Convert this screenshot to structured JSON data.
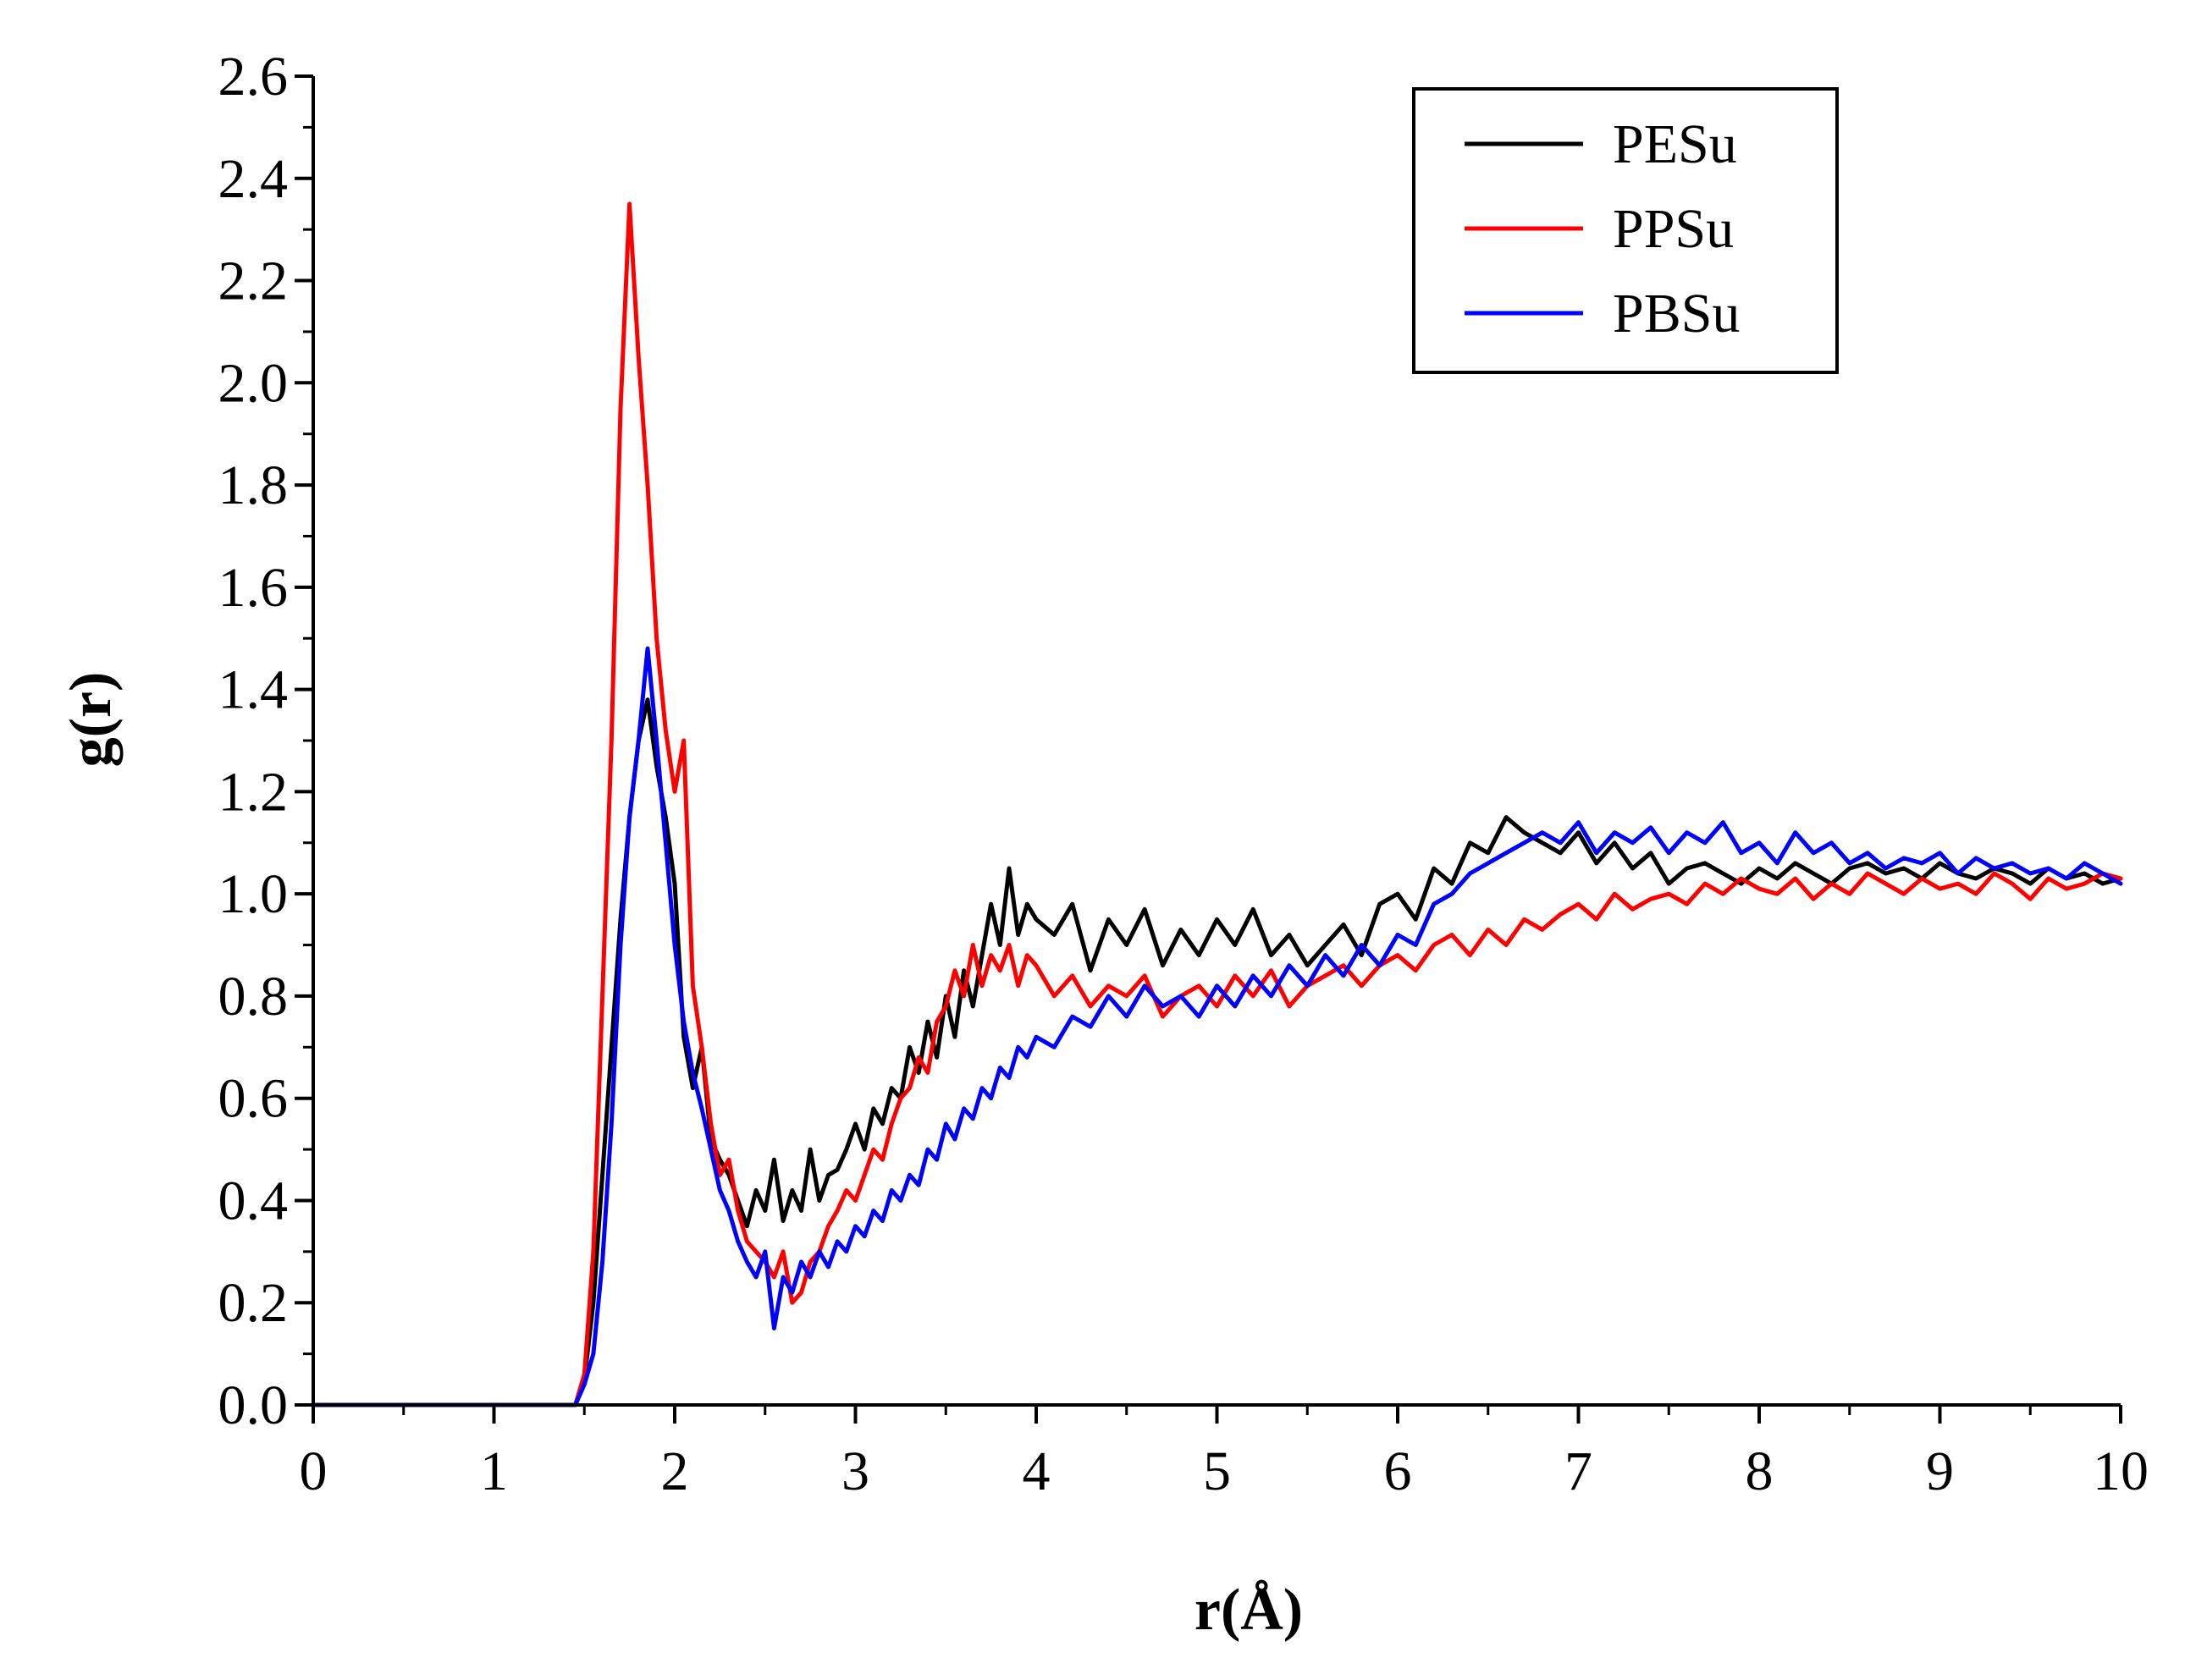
{
  "chart_data": {
    "type": "line",
    "title": "",
    "xlabel": "r(Å)",
    "ylabel": "g(r)",
    "xlim": [
      0,
      10
    ],
    "ylim": [
      0,
      2.6
    ],
    "xticks": [
      0,
      1,
      2,
      3,
      4,
      5,
      6,
      7,
      8,
      9,
      10
    ],
    "yticks": [
      0.0,
      0.2,
      0.4,
      0.6,
      0.8,
      1.0,
      1.2,
      1.4,
      1.6,
      1.8,
      2.0,
      2.2,
      2.4,
      2.6
    ],
    "xtick_labels": [
      "0",
      "1",
      "2",
      "3",
      "4",
      "5",
      "6",
      "7",
      "8",
      "9",
      "10"
    ],
    "ytick_labels": [
      "0.0",
      "0.2",
      "0.4",
      "0.6",
      "0.8",
      "1.0",
      "1.2",
      "1.4",
      "1.6",
      "1.8",
      "2.0",
      "2.2",
      "2.4",
      "2.6"
    ],
    "grid": false,
    "legend_position": "top-right",
    "series": [
      {
        "name": "PESu",
        "color": "#000000",
        "x": [
          0.0,
          1.45,
          1.5,
          1.55,
          1.6,
          1.65,
          1.7,
          1.75,
          1.8,
          1.85,
          1.9,
          1.95,
          2.0,
          2.05,
          2.1,
          2.15,
          2.2,
          2.25,
          2.3,
          2.35,
          2.4,
          2.45,
          2.5,
          2.55,
          2.6,
          2.65,
          2.7,
          2.75,
          2.8,
          2.85,
          2.9,
          2.95,
          3.0,
          3.05,
          3.1,
          3.15,
          3.2,
          3.25,
          3.3,
          3.35,
          3.4,
          3.45,
          3.5,
          3.55,
          3.6,
          3.65,
          3.7,
          3.75,
          3.8,
          3.85,
          3.9,
          3.95,
          4.0,
          4.1,
          4.2,
          4.3,
          4.4,
          4.5,
          4.6,
          4.7,
          4.8,
          4.9,
          5.0,
          5.1,
          5.2,
          5.3,
          5.4,
          5.5,
          5.6,
          5.7,
          5.8,
          5.9,
          6.0,
          6.1,
          6.2,
          6.3,
          6.4,
          6.5,
          6.6,
          6.7,
          6.8,
          6.9,
          7.0,
          7.1,
          7.2,
          7.3,
          7.4,
          7.5,
          7.6,
          7.7,
          7.8,
          7.9,
          8.0,
          8.1,
          8.2,
          8.3,
          8.4,
          8.5,
          8.6,
          8.7,
          8.8,
          8.9,
          9.0,
          9.1,
          9.2,
          9.3,
          9.4,
          9.5,
          9.6,
          9.7,
          9.8,
          9.9,
          10.0
        ],
        "y": [
          0.0,
          0.0,
          0.05,
          0.2,
          0.45,
          0.7,
          0.95,
          1.15,
          1.3,
          1.38,
          1.25,
          1.15,
          1.02,
          0.72,
          0.62,
          0.7,
          0.52,
          0.48,
          0.45,
          0.4,
          0.35,
          0.42,
          0.38,
          0.48,
          0.36,
          0.42,
          0.38,
          0.5,
          0.4,
          0.45,
          0.46,
          0.5,
          0.55,
          0.5,
          0.58,
          0.55,
          0.62,
          0.6,
          0.7,
          0.65,
          0.75,
          0.68,
          0.8,
          0.72,
          0.85,
          0.78,
          0.88,
          0.98,
          0.9,
          1.05,
          0.92,
          0.98,
          0.95,
          0.92,
          0.98,
          0.85,
          0.95,
          0.9,
          0.97,
          0.86,
          0.93,
          0.88,
          0.95,
          0.9,
          0.97,
          0.88,
          0.92,
          0.86,
          0.9,
          0.94,
          0.88,
          0.98,
          1.0,
          0.95,
          1.05,
          1.02,
          1.1,
          1.08,
          1.15,
          1.12,
          1.1,
          1.08,
          1.12,
          1.06,
          1.1,
          1.05,
          1.08,
          1.02,
          1.05,
          1.06,
          1.04,
          1.02,
          1.05,
          1.03,
          1.06,
          1.04,
          1.02,
          1.05,
          1.06,
          1.04,
          1.05,
          1.03,
          1.06,
          1.04,
          1.03,
          1.05,
          1.04,
          1.02,
          1.05,
          1.03,
          1.04,
          1.02,
          1.03
        ]
      },
      {
        "name": "PPSu",
        "color": "#ff0000",
        "x": [
          0.0,
          1.45,
          1.5,
          1.55,
          1.6,
          1.65,
          1.7,
          1.75,
          1.8,
          1.85,
          1.9,
          1.95,
          2.0,
          2.05,
          2.1,
          2.15,
          2.2,
          2.25,
          2.3,
          2.35,
          2.4,
          2.45,
          2.5,
          2.55,
          2.6,
          2.65,
          2.7,
          2.75,
          2.8,
          2.85,
          2.9,
          2.95,
          3.0,
          3.05,
          3.1,
          3.15,
          3.2,
          3.25,
          3.3,
          3.35,
          3.4,
          3.45,
          3.5,
          3.55,
          3.6,
          3.65,
          3.7,
          3.75,
          3.8,
          3.85,
          3.9,
          3.95,
          4.0,
          4.1,
          4.2,
          4.3,
          4.4,
          4.5,
          4.6,
          4.7,
          4.8,
          4.9,
          5.0,
          5.1,
          5.2,
          5.3,
          5.4,
          5.5,
          5.6,
          5.7,
          5.8,
          5.9,
          6.0,
          6.1,
          6.2,
          6.3,
          6.4,
          6.5,
          6.6,
          6.7,
          6.8,
          6.9,
          7.0,
          7.1,
          7.2,
          7.3,
          7.4,
          7.5,
          7.6,
          7.7,
          7.8,
          7.9,
          8.0,
          8.1,
          8.2,
          8.3,
          8.4,
          8.5,
          8.6,
          8.7,
          8.8,
          8.9,
          9.0,
          9.1,
          9.2,
          9.3,
          9.4,
          9.5,
          9.6,
          9.7,
          9.8,
          9.9,
          10.0
        ],
        "y": [
          0.0,
          0.0,
          0.06,
          0.3,
          0.8,
          1.3,
          1.95,
          2.35,
          2.05,
          1.8,
          1.5,
          1.32,
          1.2,
          1.3,
          0.82,
          0.7,
          0.55,
          0.45,
          0.48,
          0.38,
          0.32,
          0.3,
          0.28,
          0.25,
          0.3,
          0.2,
          0.22,
          0.28,
          0.3,
          0.35,
          0.38,
          0.42,
          0.4,
          0.45,
          0.5,
          0.48,
          0.55,
          0.6,
          0.62,
          0.68,
          0.65,
          0.75,
          0.78,
          0.85,
          0.8,
          0.9,
          0.82,
          0.88,
          0.85,
          0.9,
          0.82,
          0.88,
          0.86,
          0.8,
          0.84,
          0.78,
          0.82,
          0.8,
          0.84,
          0.76,
          0.8,
          0.82,
          0.78,
          0.84,
          0.8,
          0.85,
          0.78,
          0.82,
          0.84,
          0.86,
          0.82,
          0.86,
          0.88,
          0.85,
          0.9,
          0.92,
          0.88,
          0.93,
          0.9,
          0.95,
          0.93,
          0.96,
          0.98,
          0.95,
          1.0,
          0.97,
          0.99,
          1.0,
          0.98,
          1.02,
          1.0,
          1.03,
          1.01,
          1.0,
          1.03,
          0.99,
          1.02,
          1.0,
          1.04,
          1.02,
          1.0,
          1.03,
          1.01,
          1.02,
          1.0,
          1.04,
          1.02,
          0.99,
          1.03,
          1.01,
          1.02,
          1.04,
          1.03
        ]
      },
      {
        "name": "PBSu",
        "color": "#0000ff",
        "x": [
          0.0,
          1.45,
          1.5,
          1.55,
          1.6,
          1.65,
          1.7,
          1.75,
          1.8,
          1.85,
          1.9,
          1.95,
          2.0,
          2.05,
          2.1,
          2.15,
          2.2,
          2.25,
          2.3,
          2.35,
          2.4,
          2.45,
          2.5,
          2.55,
          2.6,
          2.65,
          2.7,
          2.75,
          2.8,
          2.85,
          2.9,
          2.95,
          3.0,
          3.05,
          3.1,
          3.15,
          3.2,
          3.25,
          3.3,
          3.35,
          3.4,
          3.45,
          3.5,
          3.55,
          3.6,
          3.65,
          3.7,
          3.75,
          3.8,
          3.85,
          3.9,
          3.95,
          4.0,
          4.1,
          4.2,
          4.3,
          4.4,
          4.5,
          4.6,
          4.7,
          4.8,
          4.9,
          5.0,
          5.1,
          5.2,
          5.3,
          5.4,
          5.5,
          5.6,
          5.7,
          5.8,
          5.9,
          6.0,
          6.1,
          6.2,
          6.3,
          6.4,
          6.5,
          6.6,
          6.7,
          6.8,
          6.9,
          7.0,
          7.1,
          7.2,
          7.3,
          7.4,
          7.5,
          7.6,
          7.7,
          7.8,
          7.9,
          8.0,
          8.1,
          8.2,
          8.3,
          8.4,
          8.5,
          8.6,
          8.7,
          8.8,
          8.9,
          9.0,
          9.1,
          9.2,
          9.3,
          9.4,
          9.5,
          9.6,
          9.7,
          9.8,
          9.9,
          10.0
        ],
        "y": [
          0.0,
          0.0,
          0.04,
          0.1,
          0.28,
          0.55,
          0.9,
          1.15,
          1.3,
          1.48,
          1.3,
          1.1,
          0.9,
          0.75,
          0.65,
          0.58,
          0.5,
          0.42,
          0.38,
          0.32,
          0.28,
          0.25,
          0.3,
          0.15,
          0.25,
          0.22,
          0.28,
          0.25,
          0.3,
          0.27,
          0.32,
          0.3,
          0.35,
          0.33,
          0.38,
          0.36,
          0.42,
          0.4,
          0.45,
          0.43,
          0.5,
          0.48,
          0.55,
          0.52,
          0.58,
          0.56,
          0.62,
          0.6,
          0.66,
          0.64,
          0.7,
          0.68,
          0.72,
          0.7,
          0.76,
          0.74,
          0.8,
          0.76,
          0.82,
          0.78,
          0.8,
          0.76,
          0.82,
          0.78,
          0.84,
          0.8,
          0.86,
          0.82,
          0.88,
          0.84,
          0.9,
          0.86,
          0.92,
          0.9,
          0.98,
          1.0,
          1.04,
          1.06,
          1.08,
          1.1,
          1.12,
          1.1,
          1.14,
          1.08,
          1.12,
          1.1,
          1.13,
          1.08,
          1.12,
          1.1,
          1.14,
          1.08,
          1.1,
          1.06,
          1.12,
          1.08,
          1.1,
          1.06,
          1.08,
          1.05,
          1.07,
          1.06,
          1.08,
          1.04,
          1.07,
          1.05,
          1.06,
          1.04,
          1.05,
          1.03,
          1.06,
          1.04,
          1.02
        ]
      }
    ]
  }
}
